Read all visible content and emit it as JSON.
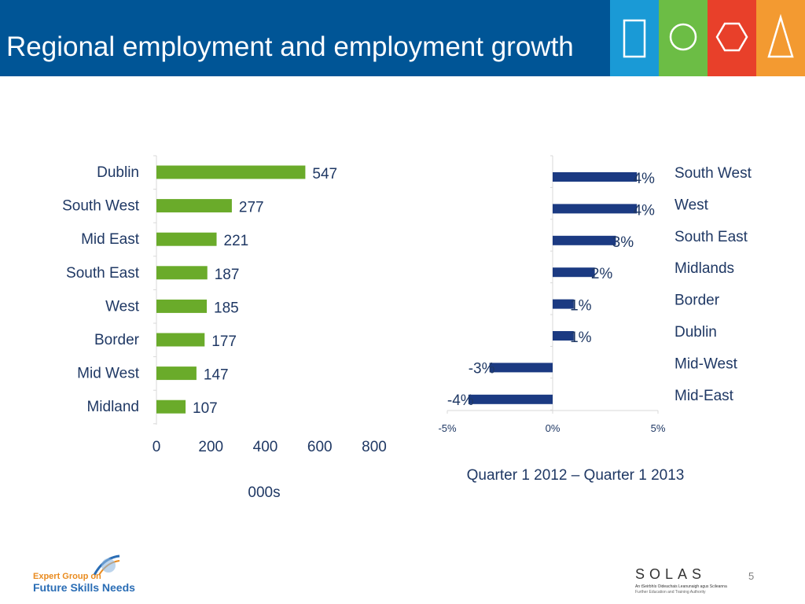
{
  "slide": {
    "title": "Regional employment and employment growth",
    "page_number": "5"
  },
  "colors": {
    "header_bg": "#005596",
    "employment_bar": "#6aab2a",
    "growth_bar": "#1b3a82",
    "logo_blue": "#1a9ad6",
    "logo_green": "#6cbd45",
    "logo_red": "#e8402a",
    "logo_orange": "#f39a31"
  },
  "header_icons": [
    "rectangle-icon",
    "circle-icon",
    "hexagon-icon",
    "triangle-icon"
  ],
  "chart_data": [
    {
      "type": "bar",
      "orientation": "horizontal",
      "categories": [
        "Dublin",
        "South West",
        "Mid East",
        "South East",
        "West",
        "Border",
        "Mid West",
        "Midland"
      ],
      "values": [
        547,
        277,
        221,
        187,
        185,
        177,
        147,
        107
      ],
      "data_labels": [
        "547",
        "277",
        "221",
        "187",
        "185",
        "177",
        "147",
        "107"
      ],
      "xlim": [
        0,
        800
      ],
      "x_ticks": [
        0,
        200,
        400,
        600,
        800
      ],
      "x_tick_labels": [
        "0",
        "200",
        "400",
        "600",
        "800"
      ],
      "xlabel": "000s",
      "grid": false
    },
    {
      "type": "bar",
      "orientation": "horizontal",
      "categories": [
        "South West",
        "West",
        "South East",
        "Midlands",
        "Border",
        "Dublin",
        "Mid-West",
        "Mid-East"
      ],
      "values": [
        0.04,
        0.04,
        0.03,
        0.02,
        0.01,
        0.01,
        -0.03,
        -0.04
      ],
      "data_labels": [
        "4%",
        "4%",
        "3%",
        "2%",
        "1%",
        "1%",
        "-3%",
        "-4%"
      ],
      "xlim": [
        -0.05,
        0.05
      ],
      "x_ticks": [
        -0.05,
        0,
        0.05
      ],
      "x_tick_labels": [
        "-5%",
        "0%",
        "5%"
      ],
      "xlabel": "Quarter 1 2012 – Quarter 1 2013",
      "category_label_position": "right",
      "grid": false
    }
  ],
  "footer": {
    "efg_line1": "Expert Group on",
    "efg_line2": "Future Skills Needs",
    "solas_word": "SOLAS",
    "solas_tag1": "An tSeirbhís Oideachais Leanunaigh agus Scileanna",
    "solas_tag2": "Further Education and Training Authority"
  }
}
